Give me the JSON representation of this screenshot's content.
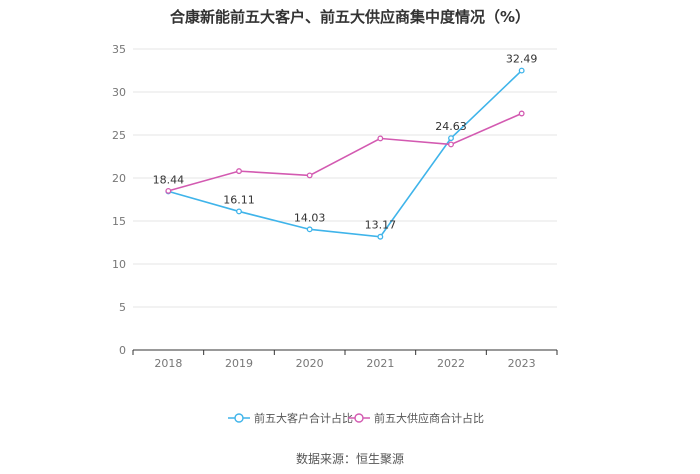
{
  "chart_data": {
    "type": "line",
    "title": "合康新能前五大客户、前五大供应商集中度情况（%）",
    "categories": [
      "2018",
      "2019",
      "2020",
      "2021",
      "2022",
      "2023"
    ],
    "series": [
      {
        "name": "前五大客户合计占比",
        "color": "#3fb4ea",
        "values": [
          18.44,
          16.11,
          14.03,
          13.17,
          24.63,
          32.49
        ],
        "labels": [
          "18.44",
          "16.11",
          "14.03",
          "13.17",
          "24.63",
          "32.49"
        ]
      },
      {
        "name": "前五大供应商合计占比",
        "color": "#d35ab1",
        "values": [
          18.5,
          20.8,
          20.3,
          24.6,
          23.9,
          27.5
        ]
      }
    ],
    "ylim": [
      0,
      35
    ],
    "yticks": [
      "0",
      "5",
      "10",
      "15",
      "20",
      "25",
      "30",
      "35"
    ],
    "grid": true,
    "legend": "bottom-center",
    "source": "数据来源：恒生聚源"
  }
}
